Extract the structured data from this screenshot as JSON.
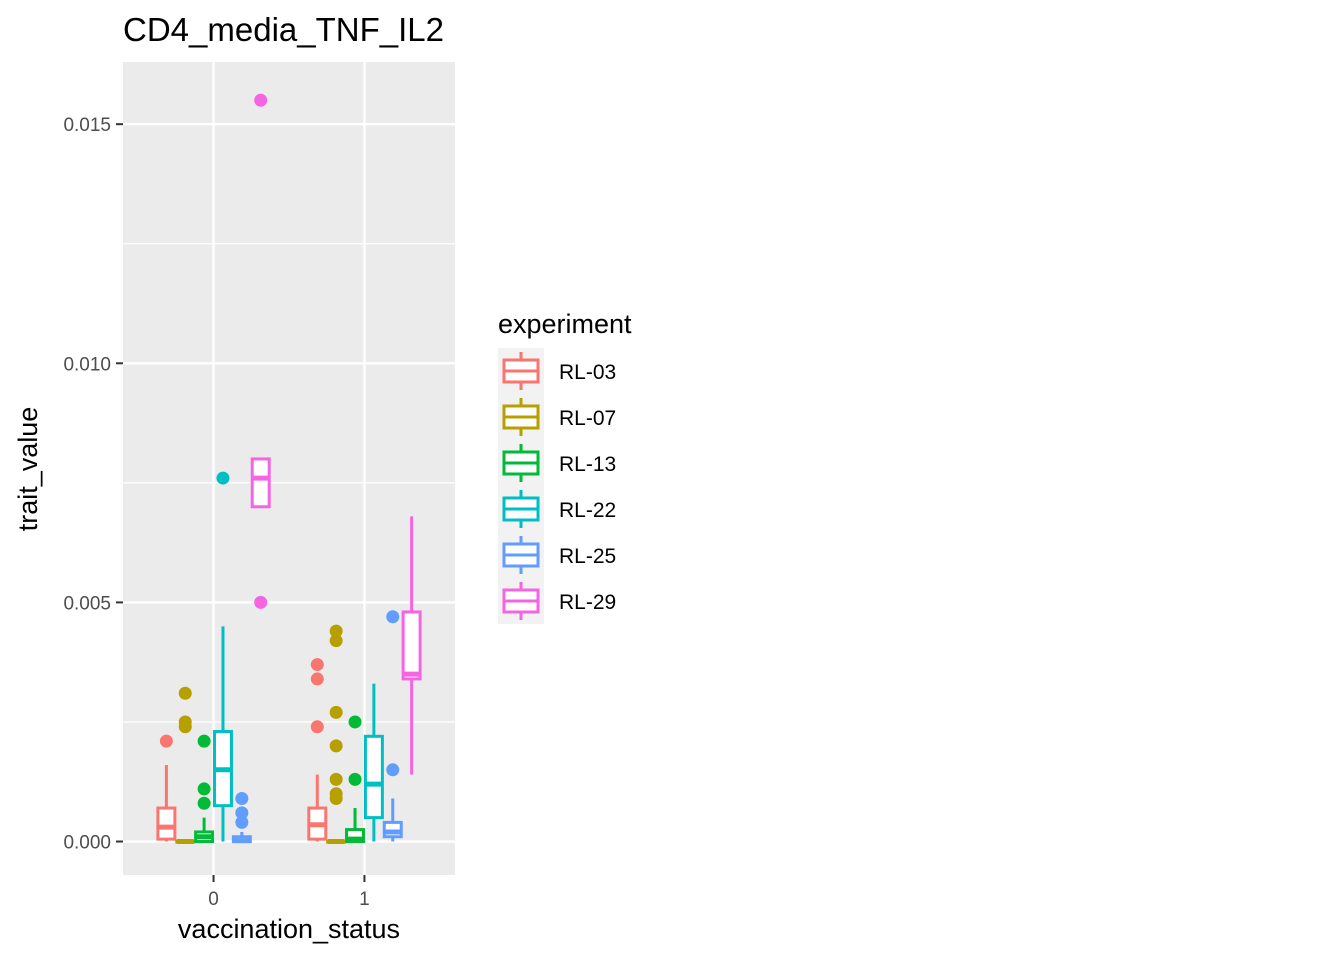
{
  "chart_data": {
    "type": "box",
    "title": "CD4_media_TNF_IL2",
    "xlabel": "vaccination_status",
    "ylabel": "trait_value",
    "categories": [
      "0",
      "1"
    ],
    "y_ticks": [
      0.0,
      0.005,
      0.01,
      0.015
    ],
    "y_tick_labels": [
      "0.000",
      "0.005",
      "0.010",
      "0.015"
    ],
    "ylim": [
      -0.0007,
      0.0163
    ],
    "grid": true,
    "legend": {
      "title": "experiment",
      "position": "right"
    },
    "series": [
      {
        "name": "RL-03",
        "color": "#F8766D",
        "boxes": [
          {
            "category": "0",
            "q1": 5e-05,
            "median": 0.0003,
            "q3": 0.0007,
            "whisker_low": 0.0,
            "whisker_high": 0.0016,
            "outliers": [
              0.0021
            ]
          },
          {
            "category": "1",
            "q1": 5e-05,
            "median": 0.00035,
            "q3": 0.0007,
            "whisker_low": 0.0,
            "whisker_high": 0.0014,
            "outliers": [
              0.0024,
              0.0034,
              0.0037
            ]
          }
        ]
      },
      {
        "name": "RL-07",
        "color": "#B79F00",
        "boxes": [
          {
            "category": "0",
            "q1": 0.0,
            "median": 0.0,
            "q3": 0.0,
            "whisker_low": 0.0,
            "whisker_high": 0.0,
            "outliers": [
              0.0024,
              0.0025,
              0.0031
            ]
          },
          {
            "category": "1",
            "q1": 0.0,
            "median": 0.0,
            "q3": 0.0,
            "whisker_low": 0.0,
            "whisker_high": 0.0,
            "outliers": [
              0.0009,
              0.001,
              0.0013,
              0.002,
              0.0027,
              0.0042,
              0.0044
            ]
          }
        ]
      },
      {
        "name": "RL-13",
        "color": "#00BA38",
        "boxes": [
          {
            "category": "0",
            "q1": 0.0,
            "median": 0.0001,
            "q3": 0.0002,
            "whisker_low": 0.0,
            "whisker_high": 0.0005,
            "outliers": [
              0.0008,
              0.0011,
              0.0021
            ]
          },
          {
            "category": "1",
            "q1": 0.0,
            "median": 5e-05,
            "q3": 0.00025,
            "whisker_low": 0.0,
            "whisker_high": 0.0007,
            "outliers": [
              0.0013,
              0.0025
            ]
          }
        ]
      },
      {
        "name": "RL-22",
        "color": "#00BFC4",
        "boxes": [
          {
            "category": "0",
            "q1": 0.00075,
            "median": 0.0015,
            "q3": 0.0023,
            "whisker_low": 0.0,
            "whisker_high": 0.0045,
            "outliers": [
              0.0076
            ]
          },
          {
            "category": "1",
            "q1": 0.0005,
            "median": 0.0012,
            "q3": 0.0022,
            "whisker_low": 0.0,
            "whisker_high": 0.0033,
            "outliers": []
          }
        ]
      },
      {
        "name": "RL-25",
        "color": "#619CFF",
        "boxes": [
          {
            "category": "0",
            "q1": 0.0,
            "median": 2e-05,
            "q3": 0.0001,
            "whisker_low": 0.0,
            "whisker_high": 0.0002,
            "outliers": [
              0.0004,
              0.0006,
              0.0009
            ]
          },
          {
            "category": "1",
            "q1": 0.0001,
            "median": 0.0002,
            "q3": 0.0004,
            "whisker_low": 0.0,
            "whisker_high": 0.0009,
            "outliers": [
              0.0015,
              0.0047
            ]
          }
        ]
      },
      {
        "name": "RL-29",
        "color": "#F564E3",
        "boxes": [
          {
            "category": "0",
            "q1": 0.007,
            "median": 0.0076,
            "q3": 0.008,
            "whisker_low": 0.007,
            "whisker_high": 0.008,
            "outliers": [
              0.005,
              0.0155
            ]
          },
          {
            "category": "1",
            "q1": 0.0034,
            "median": 0.0035,
            "q3": 0.0048,
            "whisker_low": 0.0014,
            "whisker_high": 0.0068,
            "outliers": []
          }
        ]
      }
    ]
  }
}
